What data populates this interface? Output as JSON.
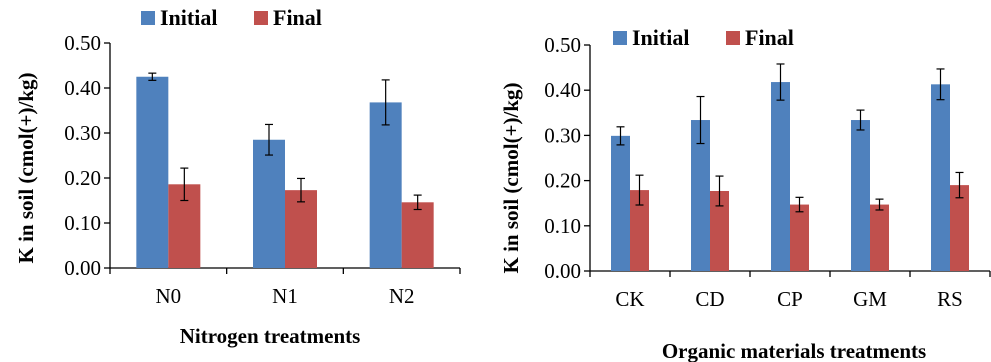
{
  "colors": {
    "initial": "#4F81BD",
    "final": "#C0504D"
  },
  "chart_data": [
    {
      "type": "bar",
      "title": "",
      "xlabel": "Nitrogen treatments",
      "ylabel": "K in soil (cmol(+)/kg)",
      "ylim": [
        0,
        0.5
      ],
      "yticks": [
        "0.00",
        "0.10",
        "0.20",
        "0.30",
        "0.40",
        "0.50"
      ],
      "categories": [
        "N0",
        "N1",
        "N2"
      ],
      "legend_position": "top-left",
      "series": [
        {
          "name": "Initial",
          "values": [
            0.425,
            0.285,
            0.368
          ],
          "errors": [
            0.008,
            0.034,
            0.05
          ]
        },
        {
          "name": "Final",
          "values": [
            0.186,
            0.173,
            0.146
          ],
          "errors": [
            0.036,
            0.026,
            0.016
          ]
        }
      ]
    },
    {
      "type": "bar",
      "title": "",
      "xlabel": "Organic materials treatments",
      "ylabel": "K in soil (cmol(+)/kg)",
      "ylim": [
        0,
        0.5
      ],
      "yticks": [
        "0.00",
        "0.10",
        "0.20",
        "0.30",
        "0.40",
        "0.50"
      ],
      "categories": [
        "CK",
        "CD",
        "CP",
        "GM",
        "RS"
      ],
      "legend_position": "top-left",
      "series": [
        {
          "name": "Initial",
          "values": [
            0.299,
            0.334,
            0.418,
            0.334,
            0.413
          ],
          "errors": [
            0.02,
            0.052,
            0.04,
            0.022,
            0.034
          ]
        },
        {
          "name": "Final",
          "values": [
            0.179,
            0.177,
            0.147,
            0.147,
            0.19
          ],
          "errors": [
            0.033,
            0.033,
            0.016,
            0.012,
            0.028
          ]
        }
      ]
    }
  ]
}
